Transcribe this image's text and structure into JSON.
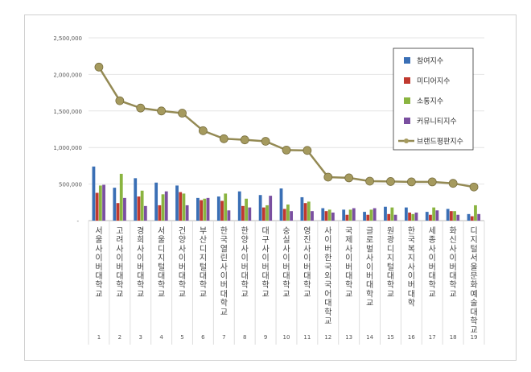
{
  "chart_data": {
    "type": "bar+line",
    "ylim": [
      0,
      2500000
    ],
    "yticks": [
      "-",
      "500,000",
      "1,000,000",
      "1,500,000",
      "2,000,000",
      "2,500,000"
    ],
    "categories": [
      "서울사이버대학교",
      "고려사이버대학교",
      "경희사이버대학교",
      "서울디지털대학교",
      "건양사이버대학교",
      "부산디지털대학교",
      "한국열린사이버대학교",
      "한양사이버대학교",
      "대구사이버대학교",
      "숭실사이버대학교",
      "영진사이버대학교",
      "사이버한국외국어대학교",
      "국제사이버대학교",
      "글로벌사이버대학교",
      "원광디지털대학교",
      "한국복지사이버대학",
      "세종사이버대학교",
      "화신사이버대학교",
      "디지털서울문화예술대학교"
    ],
    "ranks": [
      "1",
      "2",
      "3",
      "4",
      "5",
      "6",
      "7",
      "8",
      "9",
      "10",
      "11",
      "12",
      "13",
      "14",
      "15",
      "16",
      "17",
      "18",
      "19"
    ],
    "series": [
      {
        "name": "참여지수",
        "color": "#3a6fb5",
        "values": [
          740000,
          450000,
          580000,
          520000,
          480000,
          310000,
          330000,
          400000,
          350000,
          440000,
          320000,
          170000,
          150000,
          120000,
          190000,
          180000,
          120000,
          160000,
          90000
        ]
      },
      {
        "name": "미디어지수",
        "color": "#c0392f",
        "values": [
          380000,
          240000,
          330000,
          210000,
          390000,
          280000,
          270000,
          200000,
          180000,
          160000,
          240000,
          130000,
          80000,
          80000,
          90000,
          110000,
          80000,
          130000,
          60000
        ]
      },
      {
        "name": "소통지수",
        "color": "#8ab440",
        "values": [
          480000,
          640000,
          410000,
          360000,
          370000,
          300000,
          370000,
          300000,
          210000,
          220000,
          260000,
          150000,
          150000,
          150000,
          180000,
          90000,
          180000,
          130000,
          210000
        ]
      },
      {
        "name": "커뮤니티지수",
        "color": "#7a4fa0",
        "values": [
          490000,
          310000,
          200000,
          400000,
          210000,
          310000,
          140000,
          180000,
          340000,
          130000,
          130000,
          110000,
          170000,
          170000,
          80000,
          110000,
          140000,
          80000,
          90000
        ]
      },
      {
        "name": "브랜드평판지수",
        "type": "line",
        "color": "#948a54",
        "values": [
          2100000,
          1640000,
          1540000,
          1500000,
          1470000,
          1230000,
          1120000,
          1105000,
          1085000,
          965000,
          960000,
          595000,
          585000,
          540000,
          535000,
          530000,
          530000,
          510000,
          460000
        ]
      }
    ],
    "legend": "top-right"
  }
}
